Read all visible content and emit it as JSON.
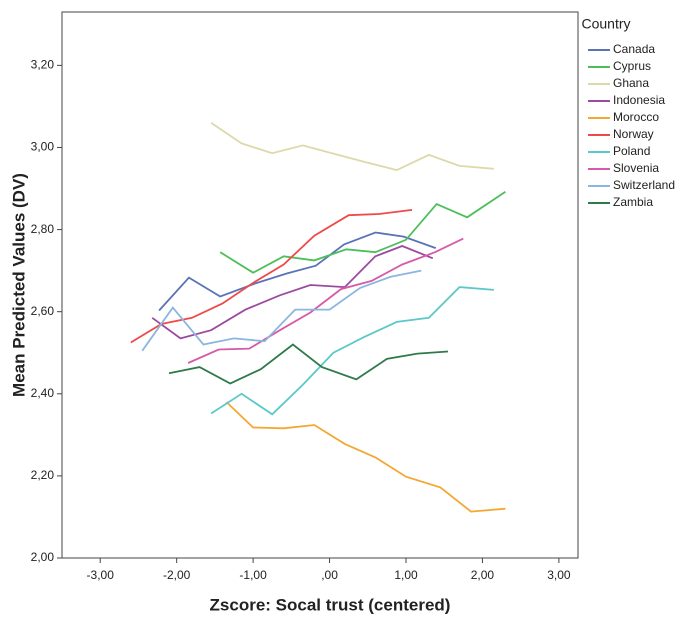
{
  "chart_data": {
    "type": "line",
    "x_label": "Zscore:  Socal trust (centered)",
    "y_label": "Mean Predicted Values (DV)",
    "legend_title": "Country",
    "legend": "right",
    "xlim": [
      -3.5,
      3.25
    ],
    "ylim": [
      2.0,
      3.33
    ],
    "xticks": [
      {
        "value": -3,
        "label": "-3,00"
      },
      {
        "value": -2,
        "label": "-2,00"
      },
      {
        "value": -1,
        "label": "-1,00"
      },
      {
        "value": 0,
        "label": ",00"
      },
      {
        "value": 1,
        "label": "1,00"
      },
      {
        "value": 2,
        "label": "2,00"
      },
      {
        "value": 3,
        "label": "3,00"
      }
    ],
    "yticks": [
      {
        "value": 2.0,
        "label": "2,00"
      },
      {
        "value": 2.2,
        "label": "2,20"
      },
      {
        "value": 2.4,
        "label": "2,40"
      },
      {
        "value": 2.6,
        "label": "2,60"
      },
      {
        "value": 2.8,
        "label": "2,80"
      },
      {
        "value": 3.0,
        "label": "3,00"
      },
      {
        "value": 3.2,
        "label": "3,20"
      }
    ],
    "series": [
      {
        "name": "Canada",
        "color": "#5b72b8",
        "x": [
          -2.23,
          -1.84,
          -1.43,
          -0.97,
          -0.56,
          -0.18,
          0.19,
          0.6,
          0.97,
          1.39
        ],
        "values": [
          2.603,
          2.683,
          2.637,
          2.669,
          2.693,
          2.712,
          2.764,
          2.793,
          2.783,
          2.755
        ]
      },
      {
        "name": "Cyprus",
        "color": "#4cbf5a",
        "x": [
          -1.43,
          -1.0,
          -0.6,
          -0.2,
          0.22,
          0.6,
          1.0,
          1.4,
          1.8,
          2.3
        ],
        "values": [
          2.745,
          2.695,
          2.735,
          2.725,
          2.752,
          2.745,
          2.775,
          2.862,
          2.83,
          2.892
        ]
      },
      {
        "name": "Ghana",
        "color": "#dcd9ab",
        "x": [
          -1.55,
          -1.15,
          -0.75,
          -0.35,
          0.05,
          0.45,
          0.88,
          1.3,
          1.7,
          2.15
        ],
        "values": [
          3.06,
          3.01,
          2.986,
          3.005,
          2.985,
          2.965,
          2.945,
          2.982,
          2.955,
          2.948
        ]
      },
      {
        "name": "Indonesia",
        "color": "#9b4aa0",
        "x": [
          -2.32,
          -1.95,
          -1.55,
          -1.1,
          -0.65,
          -0.25,
          0.2,
          0.6,
          0.95,
          1.35
        ],
        "values": [
          2.585,
          2.535,
          2.555,
          2.605,
          2.64,
          2.665,
          2.66,
          2.735,
          2.76,
          2.73
        ]
      },
      {
        "name": "Morocco",
        "color": "#f5a733",
        "x": [
          -1.35,
          -1.0,
          -0.6,
          -0.2,
          0.2,
          0.6,
          1.0,
          1.45,
          1.85,
          2.3
        ],
        "values": [
          2.38,
          2.318,
          2.316,
          2.324,
          2.278,
          2.245,
          2.198,
          2.172,
          2.113,
          2.12
        ]
      },
      {
        "name": "Norway",
        "color": "#ee4a4a",
        "x": [
          -2.6,
          -2.2,
          -1.8,
          -1.4,
          -1.0,
          -0.6,
          -0.2,
          0.25,
          0.65,
          1.08
        ],
        "values": [
          2.525,
          2.57,
          2.585,
          2.62,
          2.67,
          2.715,
          2.785,
          2.835,
          2.838,
          2.848
        ]
      },
      {
        "name": "Poland",
        "color": "#5cc8c8",
        "x": [
          -1.55,
          -1.15,
          -0.75,
          -0.35,
          0.05,
          0.45,
          0.88,
          1.3,
          1.7,
          2.15
        ],
        "values": [
          2.352,
          2.4,
          2.35,
          2.422,
          2.5,
          2.538,
          2.575,
          2.585,
          2.66,
          2.653
        ]
      },
      {
        "name": "Slovenia",
        "color": "#d65aa8",
        "x": [
          -1.85,
          -1.45,
          -1.05,
          -0.65,
          -0.25,
          0.15,
          0.55,
          0.95,
          1.38,
          1.75
        ],
        "values": [
          2.475,
          2.508,
          2.51,
          2.555,
          2.598,
          2.655,
          2.675,
          2.715,
          2.745,
          2.778
        ]
      },
      {
        "name": "Switzerland",
        "color": "#8ab6df",
        "x": [
          -2.45,
          -2.05,
          -1.65,
          -1.25,
          -0.85,
          -0.45,
          0.0,
          0.4,
          0.8,
          1.2
        ],
        "values": [
          2.505,
          2.61,
          2.52,
          2.535,
          2.528,
          2.605,
          2.605,
          2.658,
          2.685,
          2.7
        ]
      },
      {
        "name": "Zambia",
        "color": "#2e7a4a",
        "x": [
          -2.1,
          -1.7,
          -1.3,
          -0.9,
          -0.48,
          -0.1,
          0.35,
          0.75,
          1.15,
          1.55
        ],
        "values": [
          2.45,
          2.465,
          2.425,
          2.46,
          2.52,
          2.465,
          2.435,
          2.485,
          2.498,
          2.503
        ]
      }
    ]
  }
}
